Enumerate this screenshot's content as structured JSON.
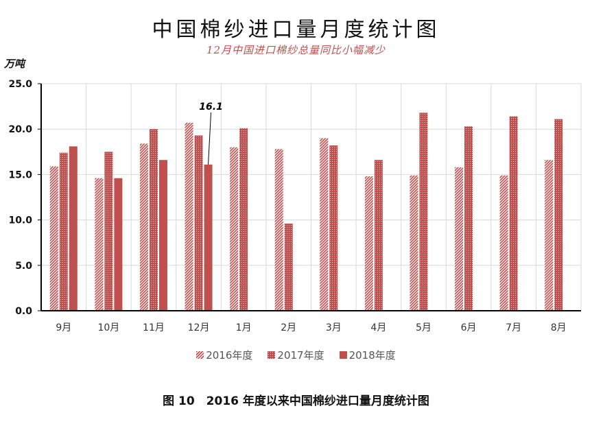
{
  "colors": {
    "bar": "#c0504d",
    "axis": "#000000",
    "grid": "#d9d9d9"
  },
  "chart_data": {
    "type": "bar",
    "title": "中国棉纱进口量月度统计图",
    "subtitle": "12月中国进口棉纱总量同比小幅减少",
    "ylabel": "万吨",
    "caption": "图 10　2016 年度以来中国棉纱进口量月度统计图",
    "categories": [
      "9月",
      "10月",
      "11月",
      "12月",
      "1月",
      "2月",
      "3月",
      "4月",
      "5月",
      "6月",
      "7月",
      "8月"
    ],
    "ylim": [
      0,
      25
    ],
    "yticks": [
      "0.0",
      "5.0",
      "10.0",
      "15.0",
      "20.0",
      "25.0"
    ],
    "grid": true,
    "legend_position": "bottom",
    "series": [
      {
        "name": "2016年度",
        "pattern": "diagonal-hatch",
        "values": [
          15.9,
          14.6,
          18.4,
          20.7,
          18.0,
          17.8,
          19.0,
          14.8,
          14.9,
          15.8,
          14.9,
          16.6
        ]
      },
      {
        "name": "2017年度",
        "pattern": "dotted",
        "values": [
          17.4,
          17.5,
          20.0,
          19.3,
          20.1,
          9.6,
          18.2,
          16.6,
          21.8,
          20.3,
          21.4,
          21.1
        ]
      },
      {
        "name": "2018年度",
        "pattern": "solid",
        "values": [
          18.1,
          14.6,
          16.6,
          16.1,
          null,
          null,
          null,
          null,
          null,
          null,
          null,
          null
        ]
      }
    ],
    "annotations": [
      {
        "text": "16.1",
        "series": "2018年度",
        "category": "12月"
      }
    ]
  }
}
